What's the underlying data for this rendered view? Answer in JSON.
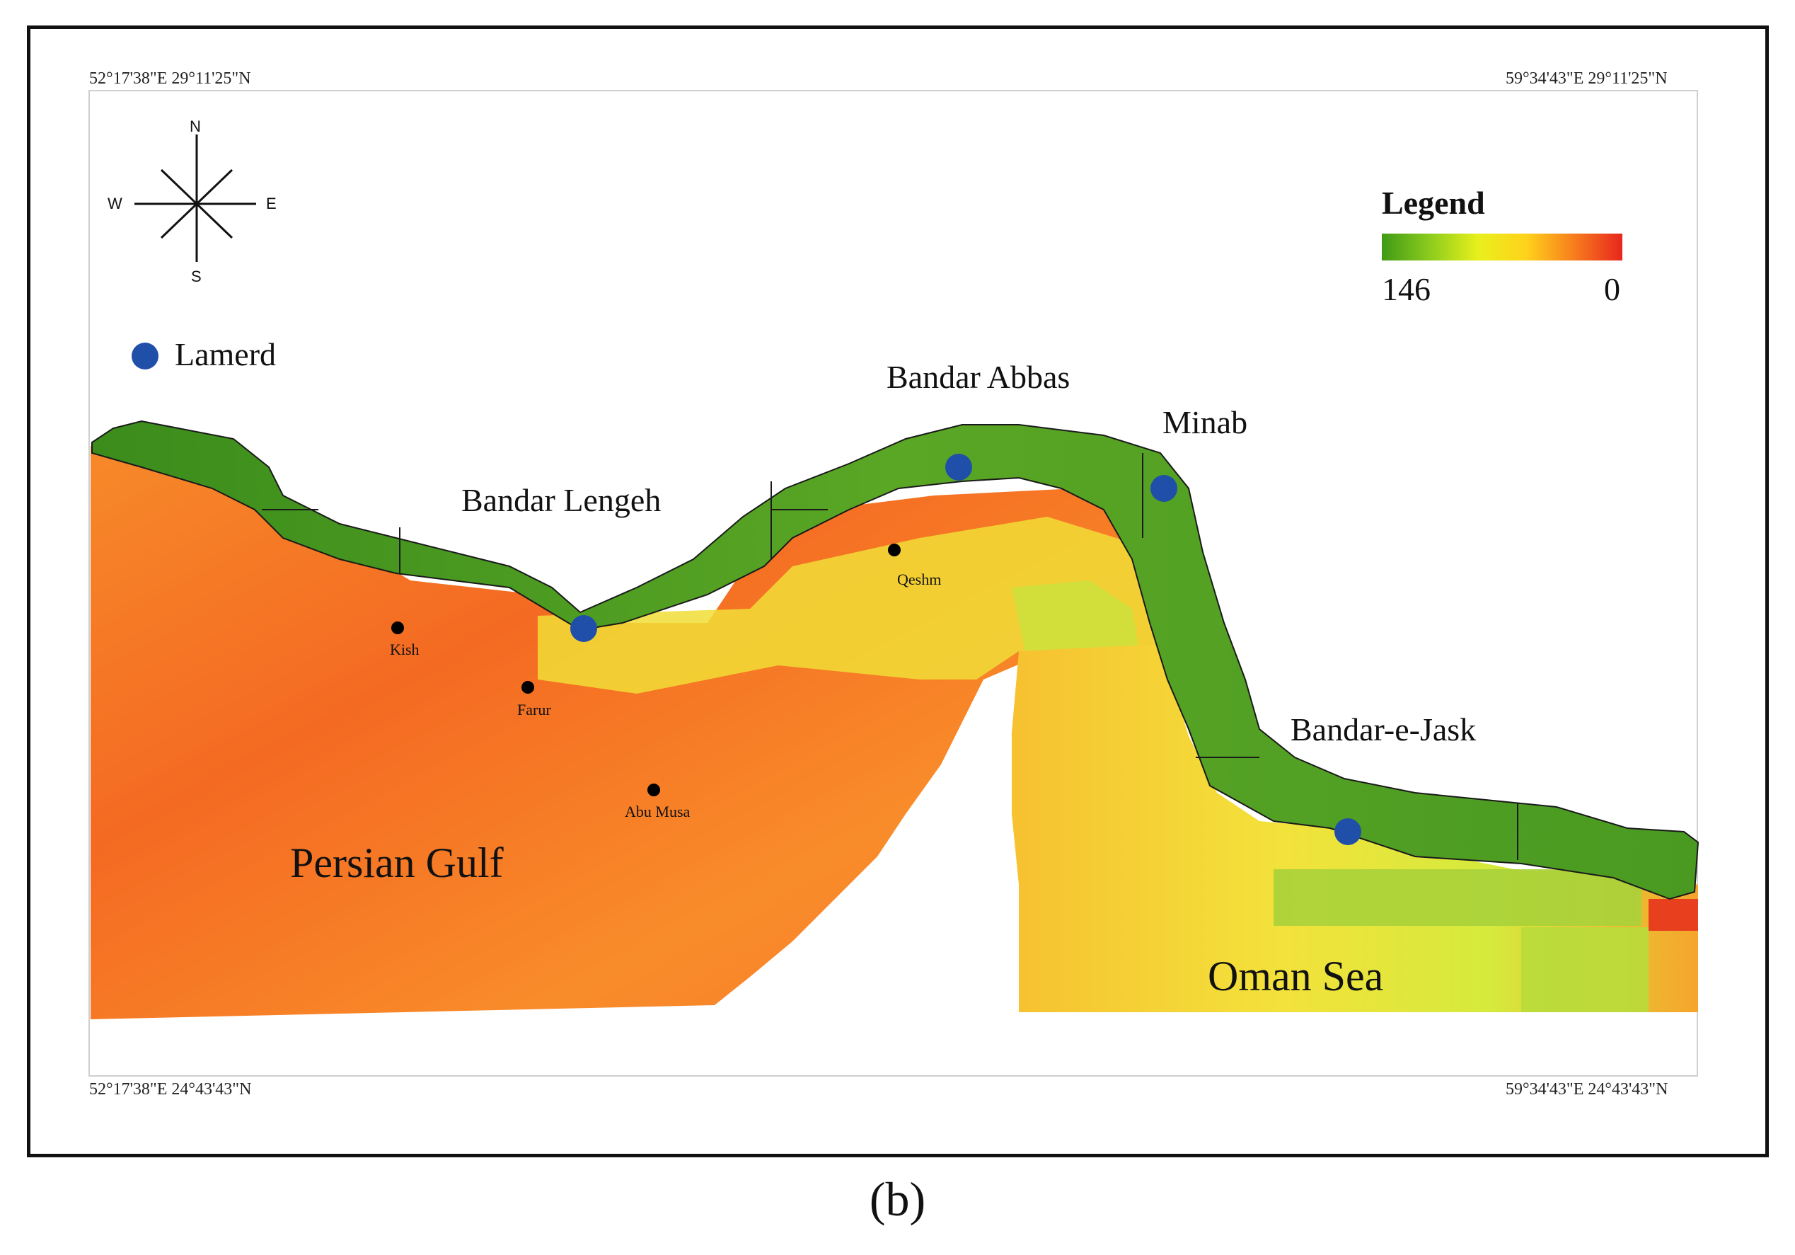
{
  "map": {
    "coords": {
      "top_left": "52°17'38\"E 29°11'25\"N",
      "top_right": "59°34'43\"E 29°11'25\"N",
      "bottom_left": "52°17'38\"E 24°43'43\"N",
      "bottom_right": "59°34'43\"E 24°43'43\"N"
    },
    "compass": {
      "n": "N",
      "s": "S",
      "e": "E",
      "w": "W"
    },
    "station_legend": {
      "label": "Lamerd",
      "color": "#1f4fa8"
    },
    "legend": {
      "title": "Legend",
      "max_label": "146",
      "min_label": "0",
      "colors": [
        "#3f9a16",
        "#8ccc1d",
        "#e8f01c",
        "#ffd21b",
        "#f77d1d",
        "#e8261d"
      ]
    },
    "stations": [
      "Bandar Lengeh",
      "Bandar Abbas",
      "Minab",
      "Bandar-e-Jask"
    ],
    "islands": [
      "Kish",
      "Farur",
      "Qeshm",
      "Abu Musa"
    ],
    "seas": [
      "Persian Gulf",
      "Oman Sea"
    ]
  },
  "caption": "(b)"
}
